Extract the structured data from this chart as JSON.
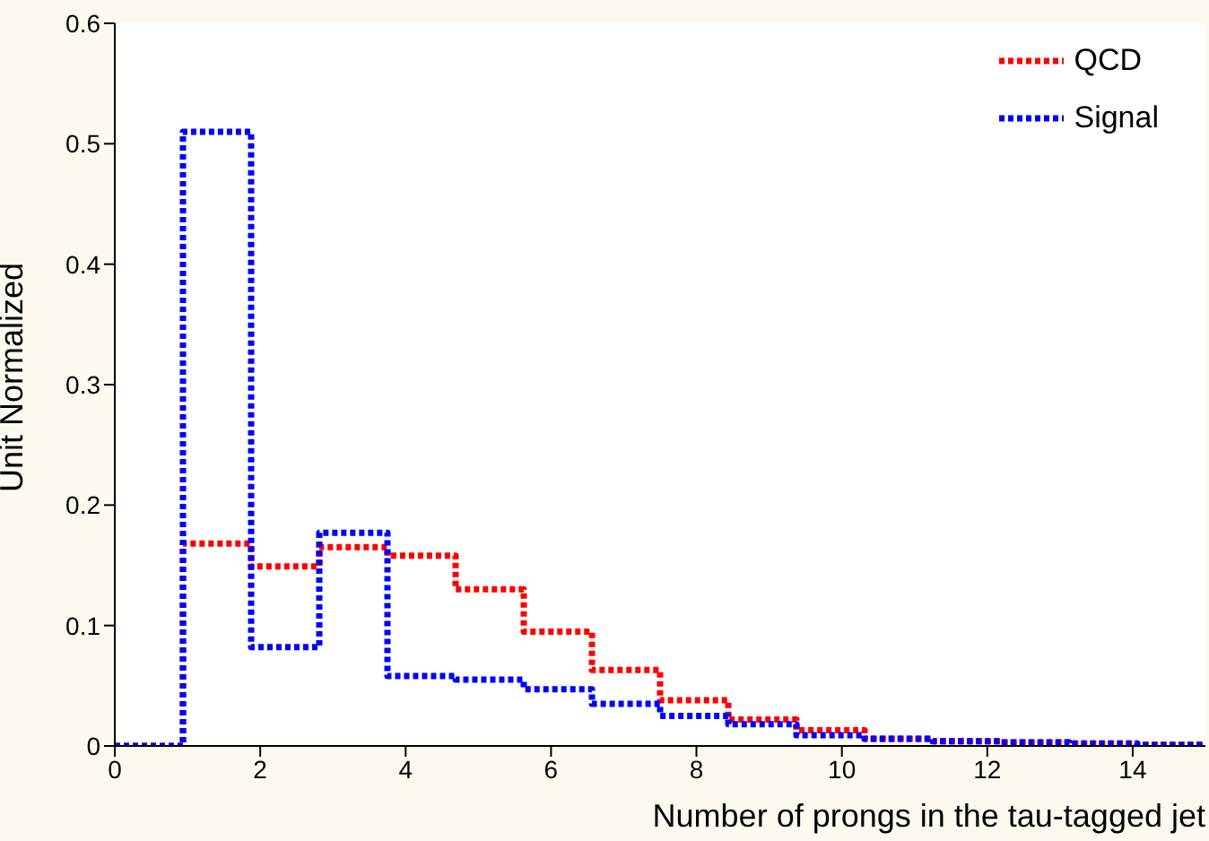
{
  "chart_data": {
    "type": "histogram",
    "xlabel": "Number of prongs in the tau-tagged jet",
    "ylabel": "Unit Normalized",
    "bins": [
      0,
      0.9375,
      1.875,
      2.8125,
      3.75,
      4.6875,
      5.625,
      6.5625,
      7.5,
      8.4375,
      9.375,
      10.3125,
      11.25,
      12.1875,
      13.125,
      14.0625,
      15
    ],
    "series": [
      {
        "name": "QCD",
        "color": "#ff0000",
        "values": [
          0,
          0.168,
          0.149,
          0.165,
          0.158,
          0.13,
          0.095,
          0.063,
          0.038,
          0.022,
          0.013,
          0.006,
          0.004,
          0.003,
          0.002,
          0.001
        ]
      },
      {
        "name": "Signal",
        "color": "#0000ff",
        "values": [
          0,
          0.51,
          0.082,
          0.177,
          0.058,
          0.055,
          0.047,
          0.035,
          0.025,
          0.018,
          0.009,
          0.006,
          0.004,
          0.003,
          0.002,
          0.001
        ]
      }
    ],
    "xlim": [
      0,
      15
    ],
    "xticks": [
      0,
      2,
      4,
      6,
      8,
      10,
      12,
      14
    ],
    "ylim": [
      0,
      0.6
    ],
    "yticks": [
      0,
      0.1,
      0.2,
      0.3,
      0.4,
      0.5,
      0.6
    ],
    "legend": "top right",
    "line_style": "dotted"
  }
}
